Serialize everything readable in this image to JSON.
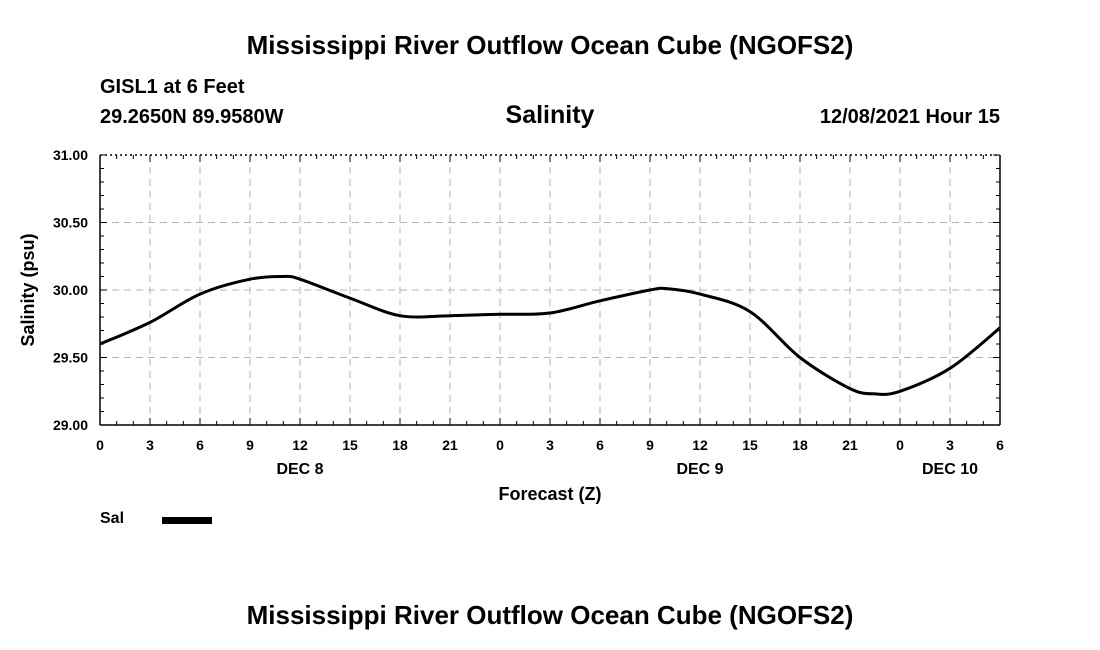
{
  "page": {
    "title_top": "Mississippi River Outflow Ocean Cube (NGOFS2)",
    "title_bottom": "Mississippi River Outflow Ocean Cube (NGOFS2)",
    "station": "GISL1 at 6 Feet",
    "location": "29.2650N  89.9580W",
    "variable": "Salinity",
    "datetime": "12/08/2021 Hour 15",
    "legend_label": "Sal"
  },
  "chart_data": {
    "type": "line",
    "title": "Salinity",
    "xlabel": "Forecast (Z)",
    "ylabel": "Salinity (psu)",
    "xlim": [
      0,
      54
    ],
    "ylim": [
      29.0,
      31.0
    ],
    "grid": true,
    "yticks": [
      29.0,
      29.5,
      30.0,
      30.5,
      31.0
    ],
    "ytick_labels": [
      "29.00",
      "29.50",
      "30.00",
      "30.50",
      "31.00"
    ],
    "xticks": [
      0,
      3,
      6,
      9,
      12,
      15,
      18,
      21,
      24,
      27,
      30,
      33,
      36,
      39,
      42,
      45,
      48,
      51,
      54
    ],
    "xtick_labels": [
      "0",
      "3",
      "6",
      "9",
      "12",
      "15",
      "18",
      "21",
      "0",
      "3",
      "6",
      "9",
      "12",
      "15",
      "18",
      "21",
      "0",
      "3",
      "6"
    ],
    "day_labels": [
      {
        "x": 12,
        "label": "DEC 8"
      },
      {
        "x": 36,
        "label": "DEC 9"
      },
      {
        "x": 51,
        "label": "DEC 10"
      }
    ],
    "series": [
      {
        "name": "Sal",
        "color": "#000000",
        "x": [
          0,
          3,
          6,
          9,
          11,
          12,
          15,
          18,
          21,
          24,
          27,
          30,
          33,
          34,
          36,
          39,
          42,
          45,
          46.5,
          48,
          51,
          54
        ],
        "y": [
          29.6,
          29.76,
          29.97,
          30.08,
          30.1,
          30.08,
          29.94,
          29.81,
          29.81,
          29.82,
          29.83,
          29.92,
          30.0,
          30.01,
          29.97,
          29.84,
          29.5,
          29.27,
          29.23,
          29.25,
          29.42,
          29.72
        ]
      }
    ]
  }
}
